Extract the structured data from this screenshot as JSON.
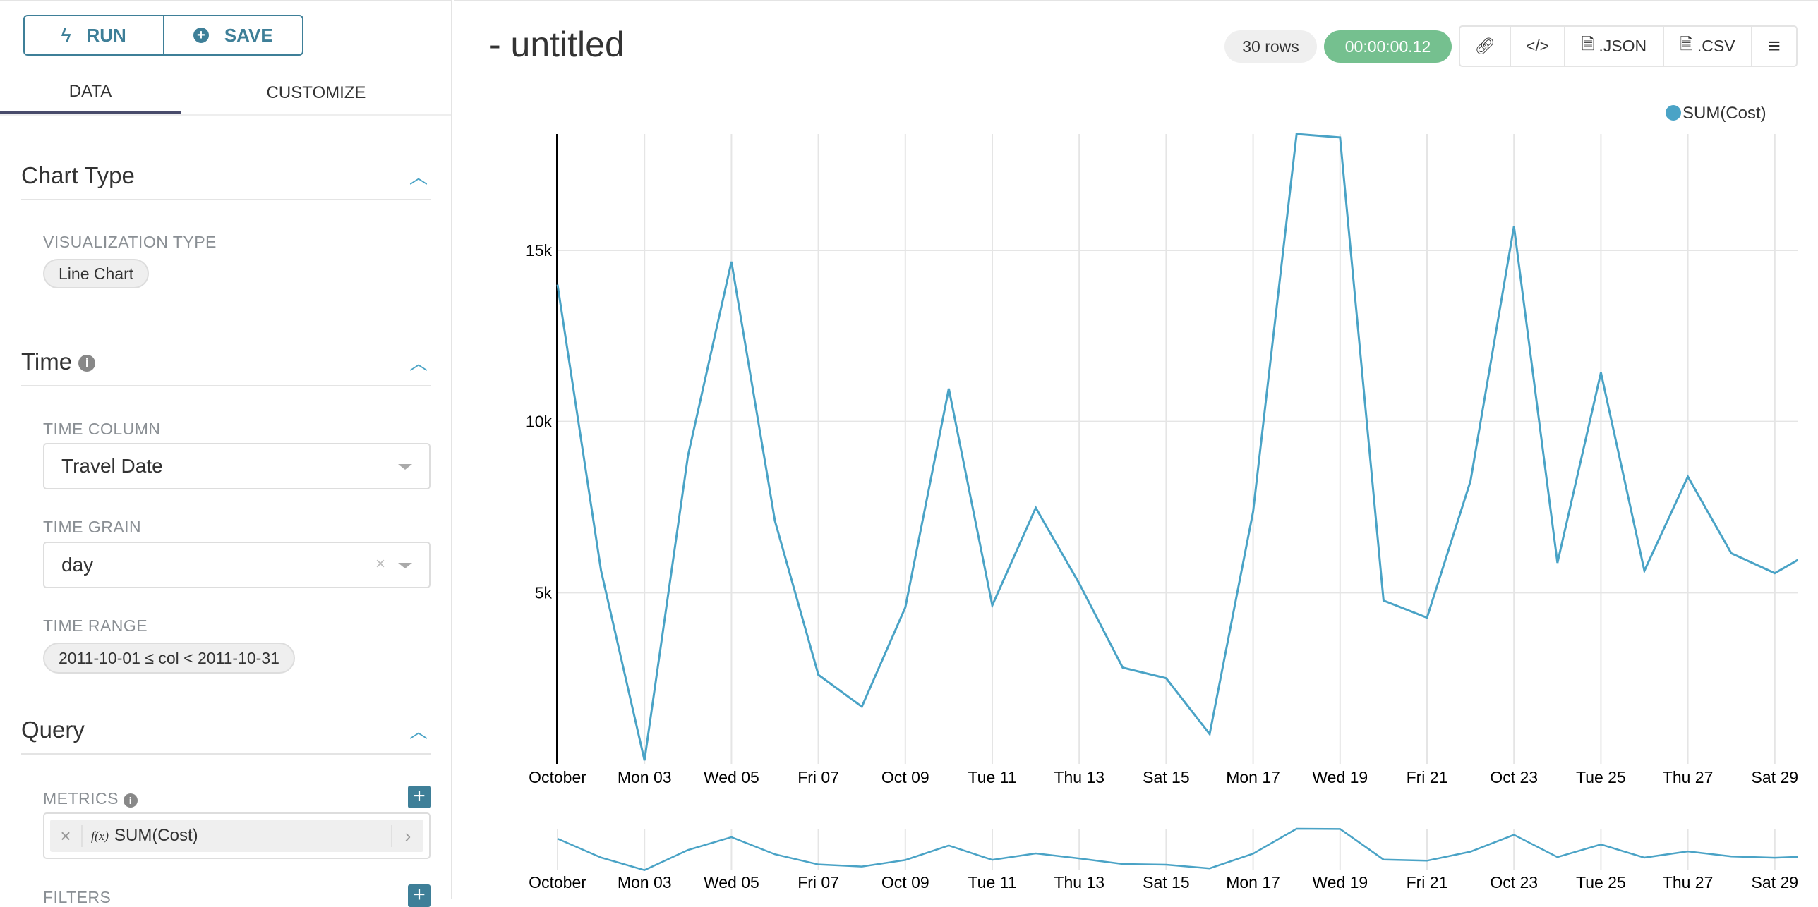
{
  "toolbar": {
    "run_label": "RUN",
    "save_label": "SAVE"
  },
  "tabs": [
    {
      "label": "DATA",
      "active": true
    },
    {
      "label": "CUSTOMIZE",
      "active": false
    }
  ],
  "sections": {
    "chart_type": {
      "title": "Chart Type",
      "viz_label": "VISUALIZATION TYPE",
      "viz_value": "Line Chart"
    },
    "time": {
      "title": "Time",
      "column_label": "TIME COLUMN",
      "column_value": "Travel Date",
      "grain_label": "TIME GRAIN",
      "grain_value": "day",
      "range_label": "TIME RANGE",
      "range_value": "2011-10-01 ≤ col < 2011-10-31"
    },
    "query": {
      "title": "Query",
      "metrics_label": "METRICS",
      "metric_value": "SUM(Cost)",
      "metric_fx": "f(x)",
      "filters_label": "FILTERS"
    }
  },
  "header": {
    "title": "- untitled",
    "rows": "30 rows",
    "timer": "00:00:00.12",
    "timer_color": "#75c08f",
    "json_label": ".JSON",
    "csv_label": ".CSV"
  },
  "chart_data": {
    "type": "line",
    "x": [
      "2011-10-01",
      "2011-10-02",
      "2011-10-03",
      "2011-10-04",
      "2011-10-05",
      "2011-10-06",
      "2011-10-07",
      "2011-10-08",
      "2011-10-09",
      "2011-10-10",
      "2011-10-11",
      "2011-10-12",
      "2011-10-13",
      "2011-10-14",
      "2011-10-15",
      "2011-10-16",
      "2011-10-17",
      "2011-10-18",
      "2011-10-19",
      "2011-10-20",
      "2011-10-21",
      "2011-10-22",
      "2011-10-23",
      "2011-10-24",
      "2011-10-25",
      "2011-10-26",
      "2011-10-27",
      "2011-10-28",
      "2011-10-29",
      "2011-10-30"
    ],
    "series": [
      {
        "name": "SUM(Cost)",
        "color": "#4aa3c6",
        "values": [
          14000,
          5650,
          100,
          9000,
          14670,
          7100,
          2600,
          1670,
          4570,
          10960,
          4630,
          7480,
          5270,
          2810,
          2500,
          870,
          7370,
          18400,
          18300,
          4770,
          4270,
          8260,
          15700,
          5870,
          11430,
          5640,
          8390,
          6150,
          5570,
          6300
        ]
      }
    ],
    "x_ticks": [
      "October",
      "Mon 03",
      "Wed 05",
      "Fri 07",
      "Oct 09",
      "Tue 11",
      "Thu 13",
      "Sat 15",
      "Mon 17",
      "Wed 19",
      "Fri 21",
      "Oct 23",
      "Tue 25",
      "Thu 27",
      "Sat 29"
    ],
    "y_ticks": [
      {
        "value": 5000,
        "label": "5k"
      },
      {
        "value": 10000,
        "label": "10k"
      },
      {
        "value": 15000,
        "label": "15k"
      }
    ],
    "ylim": [
      0,
      18400
    ],
    "grid": true,
    "legend": "top-right"
  }
}
